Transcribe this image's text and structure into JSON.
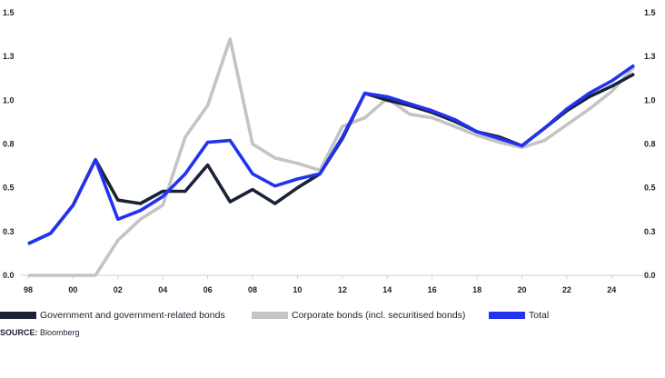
{
  "chart_data": {
    "type": "line",
    "x": [
      1998,
      1999,
      2000,
      2001,
      2002,
      2003,
      2004,
      2005,
      2006,
      2007,
      2008,
      2009,
      2010,
      2011,
      2012,
      2013,
      2014,
      2015,
      2016,
      2017,
      2018,
      2019,
      2020,
      2021,
      2022,
      2023,
      2024,
      2025
    ],
    "x_tick_labels": [
      "98",
      "00",
      "02",
      "04",
      "06",
      "08",
      "10",
      "12",
      "14",
      "16",
      "18",
      "20",
      "22",
      "24"
    ],
    "x_tick_values": [
      1998,
      2000,
      2002,
      2004,
      2006,
      2008,
      2010,
      2012,
      2014,
      2016,
      2018,
      2020,
      2022,
      2024
    ],
    "y_tick_labels": [
      "0.0",
      "0.3",
      "0.5",
      "0.8",
      "1.0",
      "1.3",
      "1.5"
    ],
    "y_tick_values": [
      0,
      0.25,
      0.5,
      0.75,
      1.0,
      1.25,
      1.5
    ],
    "ylim": [
      0,
      1.5
    ],
    "series": [
      {
        "name": "Government and government-related bonds",
        "color": "#1a2236",
        "values": [
          0.18,
          0.24,
          0.4,
          0.66,
          0.43,
          0.41,
          0.48,
          0.48,
          0.63,
          0.42,
          0.49,
          0.41,
          0.5,
          0.58,
          0.78,
          1.04,
          1.0,
          0.97,
          0.93,
          0.88,
          0.82,
          0.79,
          0.74,
          0.84,
          0.94,
          1.02,
          1.08,
          1.15
        ]
      },
      {
        "name": "Corporate bonds (incl. securitised bonds)",
        "color": "#c4c4c6",
        "values": [
          0.0,
          0.0,
          0.0,
          0.0,
          0.2,
          0.32,
          0.4,
          0.79,
          0.97,
          1.35,
          0.75,
          0.67,
          0.64,
          0.6,
          0.85,
          0.9,
          1.01,
          0.92,
          0.9,
          0.85,
          0.8,
          0.76,
          0.73,
          0.77,
          0.86,
          0.95,
          1.05,
          1.19
        ]
      },
      {
        "name": "Total",
        "color": "#2232ee",
        "values": [
          0.18,
          0.24,
          0.4,
          0.66,
          0.32,
          0.37,
          0.45,
          0.58,
          0.76,
          0.77,
          0.58,
          0.51,
          0.55,
          0.58,
          0.79,
          1.04,
          1.02,
          0.98,
          0.94,
          0.89,
          0.82,
          0.78,
          0.74,
          0.84,
          0.95,
          1.04,
          1.11,
          1.2
        ]
      }
    ],
    "grid": false,
    "legend_position": "bottom",
    "legend": [
      {
        "label": "Government and government-related bonds",
        "color": "#1a2236"
      },
      {
        "label": "Corporate bonds (incl. securitised bonds)",
        "color": "#c4c4c6"
      },
      {
        "label": "Total",
        "color": "#2232ee"
      }
    ],
    "axis_color": "#cfd2d8"
  },
  "source": {
    "prefix": "SOURCE:",
    "text": "Bloomberg"
  }
}
